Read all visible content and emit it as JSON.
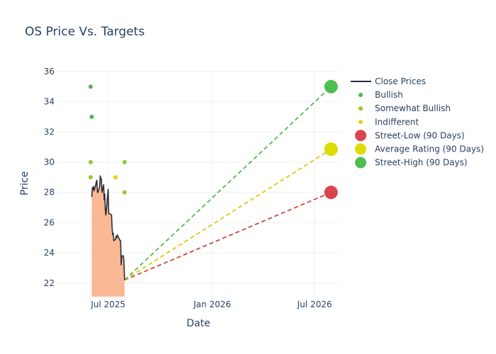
{
  "chart_data": {
    "type": "line",
    "title": "OS Price Vs. Targets",
    "xlabel": "Date",
    "ylabel": "Price",
    "xlim": [
      "2025-04-01",
      "2026-08-15"
    ],
    "ylim": [
      21.1,
      36.0
    ],
    "grid": true,
    "legend_placement": "top-right",
    "y_ticks": [
      22,
      24,
      26,
      28,
      30,
      32,
      34,
      36
    ],
    "x_ticks": [
      {
        "date": "2025-07-01",
        "label": "Jul 2025"
      },
      {
        "date": "2026-01-01",
        "label": "Jan 2026"
      },
      {
        "date": "2026-07-01",
        "label": "Jul 2026"
      }
    ],
    "colors": {
      "close": "#2a2f3a",
      "fill": "#fbb48e",
      "bullish": "#4db84e",
      "somewhat_bullish": "#8fcb2b",
      "indifferent": "#e0d40a",
      "street_low": "#d9454a",
      "average": "#dcdc00",
      "street_high": "#4cbf50",
      "line_low": "#c8483f",
      "line_avg": "#d8cd0a",
      "line_high": "#53b950"
    },
    "series": [
      {
        "name": "Close Prices",
        "kind": "line",
        "points": [
          [
            "2025-06-02",
            27.7
          ],
          [
            "2025-06-03",
            28.3
          ],
          [
            "2025-06-04",
            28.2
          ],
          [
            "2025-06-05",
            28.4
          ],
          [
            "2025-06-06",
            28.1
          ],
          [
            "2025-06-09",
            28.5
          ],
          [
            "2025-06-10",
            28.7
          ],
          [
            "2025-06-11",
            28.8
          ],
          [
            "2025-06-12",
            28.0
          ],
          [
            "2025-06-13",
            28.0
          ],
          [
            "2025-06-16",
            28.4
          ],
          [
            "2025-06-17",
            29.1
          ],
          [
            "2025-06-18",
            28.9
          ],
          [
            "2025-06-19",
            28.9
          ],
          [
            "2025-06-20",
            28.0
          ],
          [
            "2025-06-23",
            28.5
          ],
          [
            "2025-06-24",
            27.5
          ],
          [
            "2025-06-25",
            27.9
          ],
          [
            "2025-06-26",
            26.8
          ],
          [
            "2025-06-27",
            26.5
          ],
          [
            "2025-06-30",
            27.8
          ],
          [
            "2025-07-01",
            28.2
          ],
          [
            "2025-07-02",
            26.6
          ],
          [
            "2025-07-03",
            26.6
          ],
          [
            "2025-07-07",
            26.5
          ],
          [
            "2025-07-08",
            25.6
          ],
          [
            "2025-07-09",
            25.2
          ],
          [
            "2025-07-10",
            25.3
          ],
          [
            "2025-07-11",
            24.8
          ],
          [
            "2025-07-14",
            24.9
          ],
          [
            "2025-07-15",
            25.1
          ],
          [
            "2025-07-16",
            25.0
          ],
          [
            "2025-07-17",
            25.2
          ],
          [
            "2025-07-18",
            25.1
          ],
          [
            "2025-07-21",
            24.9
          ],
          [
            "2025-07-22",
            24.8
          ],
          [
            "2025-07-23",
            24.8
          ],
          [
            "2025-07-24",
            23.2
          ],
          [
            "2025-07-25",
            23.8
          ],
          [
            "2025-07-28",
            23.8
          ],
          [
            "2025-07-29",
            23.3
          ],
          [
            "2025-07-30",
            22.2
          ]
        ]
      },
      {
        "name": "Bullish",
        "kind": "markers",
        "points": [
          [
            "2025-05-31",
            35.0
          ],
          [
            "2025-06-02",
            33.0
          ]
        ]
      },
      {
        "name": "Somewhat Bullish",
        "kind": "markers",
        "points": [
          [
            "2025-05-31",
            30.0
          ],
          [
            "2025-05-31",
            29.0
          ],
          [
            "2025-07-30",
            30.0
          ],
          [
            "2025-07-30",
            28.0
          ]
        ]
      },
      {
        "name": "Indifferent",
        "kind": "markers",
        "points": [
          [
            "2025-07-14",
            29.0
          ]
        ]
      },
      {
        "name": "Street-Low (90 Days)",
        "kind": "target",
        "from": [
          "2025-07-30",
          22.2
        ],
        "to": [
          "2026-07-30",
          28.0
        ]
      },
      {
        "name": "Average Rating (90 Days)",
        "kind": "target",
        "from": [
          "2025-07-30",
          22.2
        ],
        "to": [
          "2026-07-30",
          30.86
        ]
      },
      {
        "name": "Street-High (90 Days)",
        "kind": "target",
        "from": [
          "2025-07-30",
          22.2
        ],
        "to": [
          "2026-07-30",
          35.0
        ]
      }
    ],
    "legend": [
      {
        "label": "Close Prices",
        "symbol": "line",
        "color_key": "close"
      },
      {
        "label": "Bullish",
        "symbol": "dot-small",
        "color_key": "bullish"
      },
      {
        "label": "Somewhat Bullish",
        "symbol": "dot-small",
        "color_key": "somewhat_bullish"
      },
      {
        "label": "Indifferent",
        "symbol": "dot-small",
        "color_key": "indifferent"
      },
      {
        "label": "Street-Low (90 Days)",
        "symbol": "dot-large",
        "color_key": "street_low"
      },
      {
        "label": "Average Rating (90 Days)",
        "symbol": "dot-large",
        "color_key": "average"
      },
      {
        "label": "Street-High (90 Days)",
        "symbol": "dot-large",
        "color_key": "street_high"
      }
    ]
  }
}
